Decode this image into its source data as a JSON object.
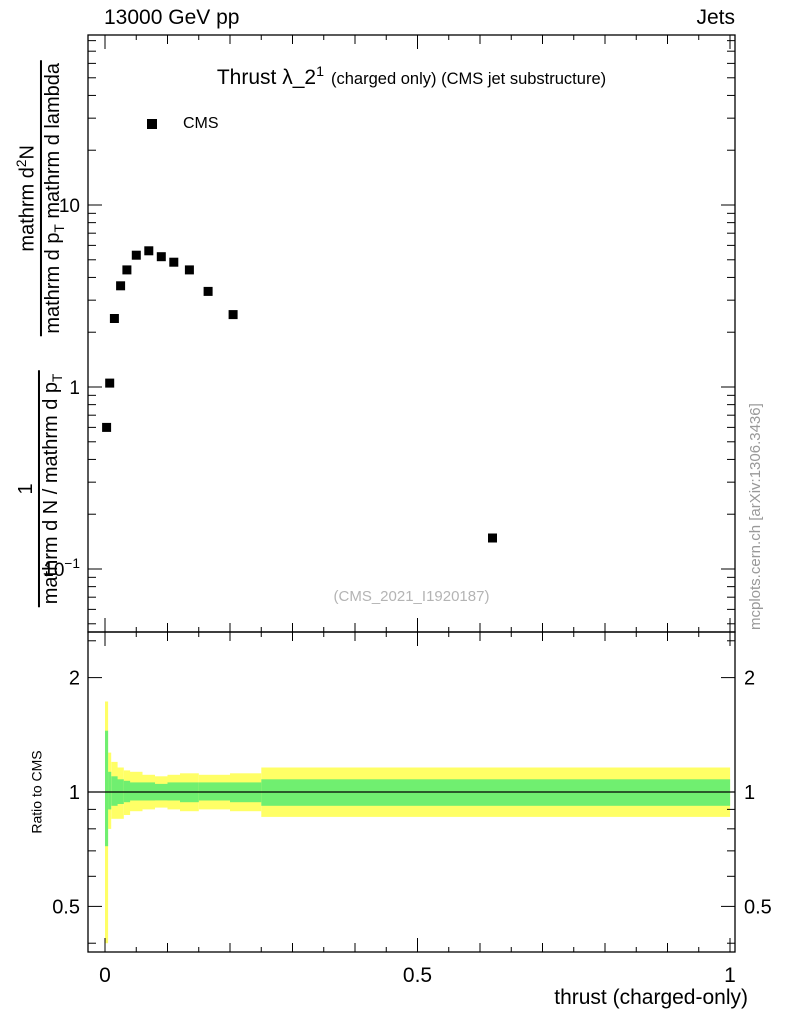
{
  "header": {
    "left": "13000 GeV pp",
    "right": "Jets"
  },
  "title": {
    "main_base": "Thrust λ_2",
    "main_sup": "1",
    "detail": "(charged only) (CMS jet substructure)"
  },
  "legend": {
    "label": "CMS",
    "marker": "filled-black-square"
  },
  "y_axis_label": {
    "frac1": {
      "num": "1",
      "den_base": "mathrm d N / mathrm d p",
      "den_sub": "T"
    },
    "frac2": {
      "num_base": "mathrm d",
      "num_sup": "2",
      "num_rest": "N",
      "den_base": "mathrm d p",
      "den_sub": "T",
      "den_rest": " mathrm d lambda"
    }
  },
  "ratio_label": "Ratio to CMS",
  "x_axis_label": "thrust (charged-only)",
  "watermark": "(CMS_2021_I1920187)",
  "side_note": "mcplots.cern.ch [arXiv:1306.3436]",
  "chart_data": {
    "type": "scatter",
    "title": "Thrust λ_2^1 (charged only) (CMS jet substructure)",
    "xlabel": "thrust (charged-only)",
    "x_range": [
      -0.027,
      1.008
    ],
    "xticks": [
      {
        "v": 0,
        "t": "0"
      },
      {
        "v": 0.5,
        "t": "0.5"
      },
      {
        "v": 1,
        "t": "1"
      }
    ],
    "grid": false,
    "legend_position": "top-left",
    "main_panel": {
      "yscale": "log",
      "y_range": [
        0.045,
        86
      ],
      "yticks": [
        {
          "v": 10,
          "t": "10"
        },
        {
          "v": 1,
          "t": "1"
        },
        {
          "v": 0.1,
          "t": "10",
          "sup": "−1"
        }
      ],
      "series": [
        {
          "name": "CMS",
          "marker": "filled-square",
          "color": "#000000",
          "points": [
            [
              0.0025,
              0.6
            ],
            [
              0.0075,
              1.05
            ],
            [
              0.015,
              2.38
            ],
            [
              0.025,
              3.6
            ],
            [
              0.035,
              4.4
            ],
            [
              0.05,
              5.3
            ],
            [
              0.07,
              5.6
            ],
            [
              0.09,
              5.2
            ],
            [
              0.11,
              4.85
            ],
            [
              0.135,
              4.4
            ],
            [
              0.165,
              3.35
            ],
            [
              0.205,
              2.5
            ],
            [
              0.62,
              0.148
            ]
          ]
        }
      ]
    },
    "ratio_panel": {
      "ylabel": "Ratio to CMS",
      "yscale": "log",
      "y_range": [
        0.38,
        2.63
      ],
      "yticks": [
        {
          "v": 2,
          "t": "2"
        },
        {
          "v": 1,
          "t": "1"
        },
        {
          "v": 0.5,
          "t": "0.5"
        }
      ],
      "reference_line": 1,
      "colors": {
        "yellow": "#ffff66",
        "green": "#70ef70"
      },
      "bands": [
        {
          "x0": 0.0,
          "x1": 0.005,
          "yellow": [
            0.4,
            1.73
          ],
          "green": [
            0.72,
            1.45
          ]
        },
        {
          "x0": 0.005,
          "x1": 0.01,
          "yellow": [
            0.8,
            1.27
          ],
          "green": [
            0.9,
            1.13
          ]
        },
        {
          "x0": 0.01,
          "x1": 0.02,
          "yellow": [
            0.85,
            1.2
          ],
          "green": [
            0.92,
            1.1
          ]
        },
        {
          "x0": 0.02,
          "x1": 0.03,
          "yellow": [
            0.85,
            1.16
          ],
          "green": [
            0.93,
            1.08
          ]
        },
        {
          "x0": 0.03,
          "x1": 0.04,
          "yellow": [
            0.87,
            1.14
          ],
          "green": [
            0.94,
            1.07
          ]
        },
        {
          "x0": 0.04,
          "x1": 0.06,
          "yellow": [
            0.89,
            1.13
          ],
          "green": [
            0.95,
            1.06
          ]
        },
        {
          "x0": 0.06,
          "x1": 0.08,
          "yellow": [
            0.9,
            1.11
          ],
          "green": [
            0.95,
            1.06
          ]
        },
        {
          "x0": 0.08,
          "x1": 0.1,
          "yellow": [
            0.91,
            1.1
          ],
          "green": [
            0.95,
            1.05
          ]
        },
        {
          "x0": 0.1,
          "x1": 0.12,
          "yellow": [
            0.9,
            1.11
          ],
          "green": [
            0.95,
            1.06
          ]
        },
        {
          "x0": 0.12,
          "x1": 0.15,
          "yellow": [
            0.89,
            1.12
          ],
          "green": [
            0.94,
            1.06
          ]
        },
        {
          "x0": 0.15,
          "x1": 0.2,
          "yellow": [
            0.9,
            1.11
          ],
          "green": [
            0.95,
            1.06
          ]
        },
        {
          "x0": 0.2,
          "x1": 0.25,
          "yellow": [
            0.89,
            1.12
          ],
          "green": [
            0.94,
            1.06
          ]
        },
        {
          "x0": 0.25,
          "x1": 1.0,
          "yellow": [
            0.86,
            1.16
          ],
          "green": [
            0.92,
            1.08
          ]
        }
      ]
    }
  }
}
